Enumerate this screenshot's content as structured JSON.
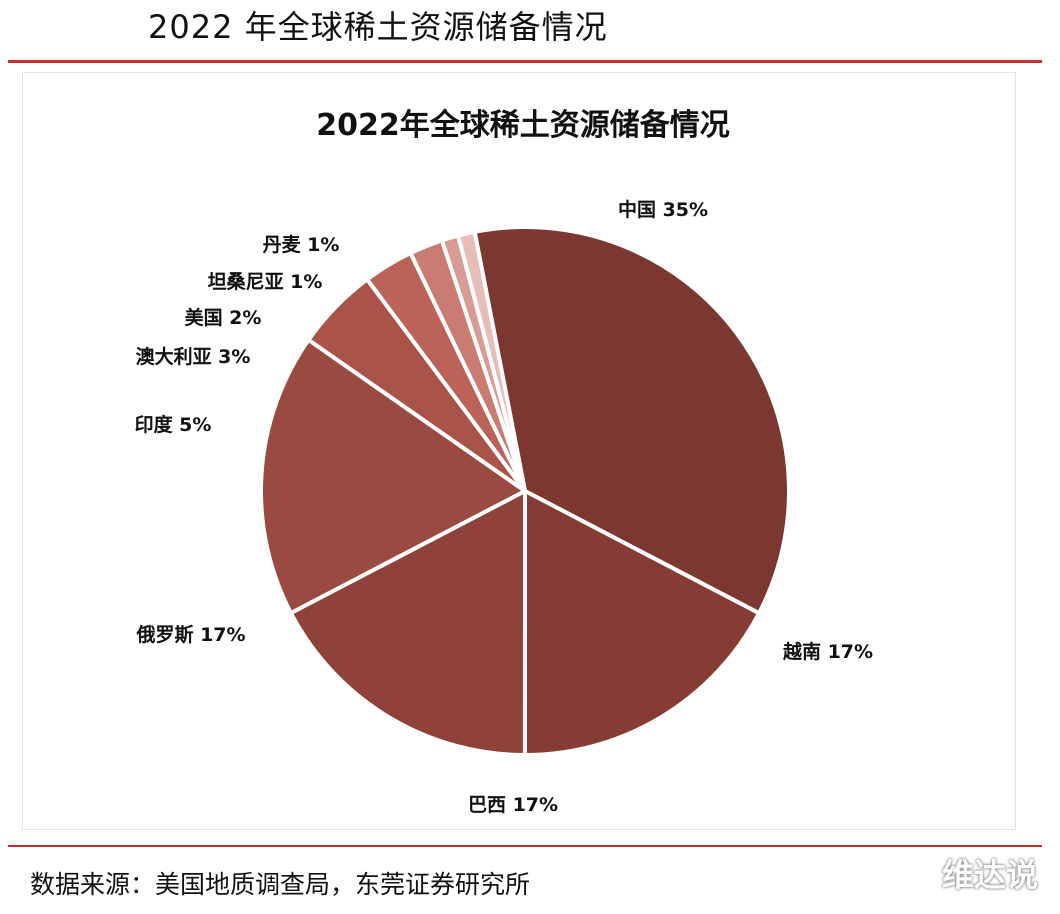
{
  "page": {
    "title": "2022 年全球稀土资源储备情况",
    "source": "数据来源：美国地质调查局，东莞证券研究所",
    "watermark": "维达说"
  },
  "chart_data": {
    "type": "pie",
    "title": "2022年全球稀土资源储备情况",
    "slices": [
      {
        "label": "中国",
        "value": 35,
        "display": "中国 35%",
        "color": "#7b3730"
      },
      {
        "label": "越南",
        "value": 17,
        "display": "越南 17%",
        "color": "#863c34"
      },
      {
        "label": "巴西",
        "value": 17,
        "display": "巴西 17%",
        "color": "#8f4239"
      },
      {
        "label": "俄罗斯",
        "value": 17,
        "display": "俄罗斯 17%",
        "color": "#9a4a40"
      },
      {
        "label": "印度",
        "value": 5,
        "display": "印度 5%",
        "color": "#aa5449"
      },
      {
        "label": "澳大利亚",
        "value": 3,
        "display": "澳大利亚 3%",
        "color": "#bb6358"
      },
      {
        "label": "美国",
        "value": 2,
        "display": "美国 2%",
        "color": "#c97c72"
      },
      {
        "label": "坦桑尼亚",
        "value": 1,
        "display": "坦桑尼亚 1%",
        "color": "#d89c94"
      },
      {
        "label": "丹麦",
        "value": 1,
        "display": "丹麦 1%",
        "color": "#e6bdb7"
      }
    ]
  }
}
